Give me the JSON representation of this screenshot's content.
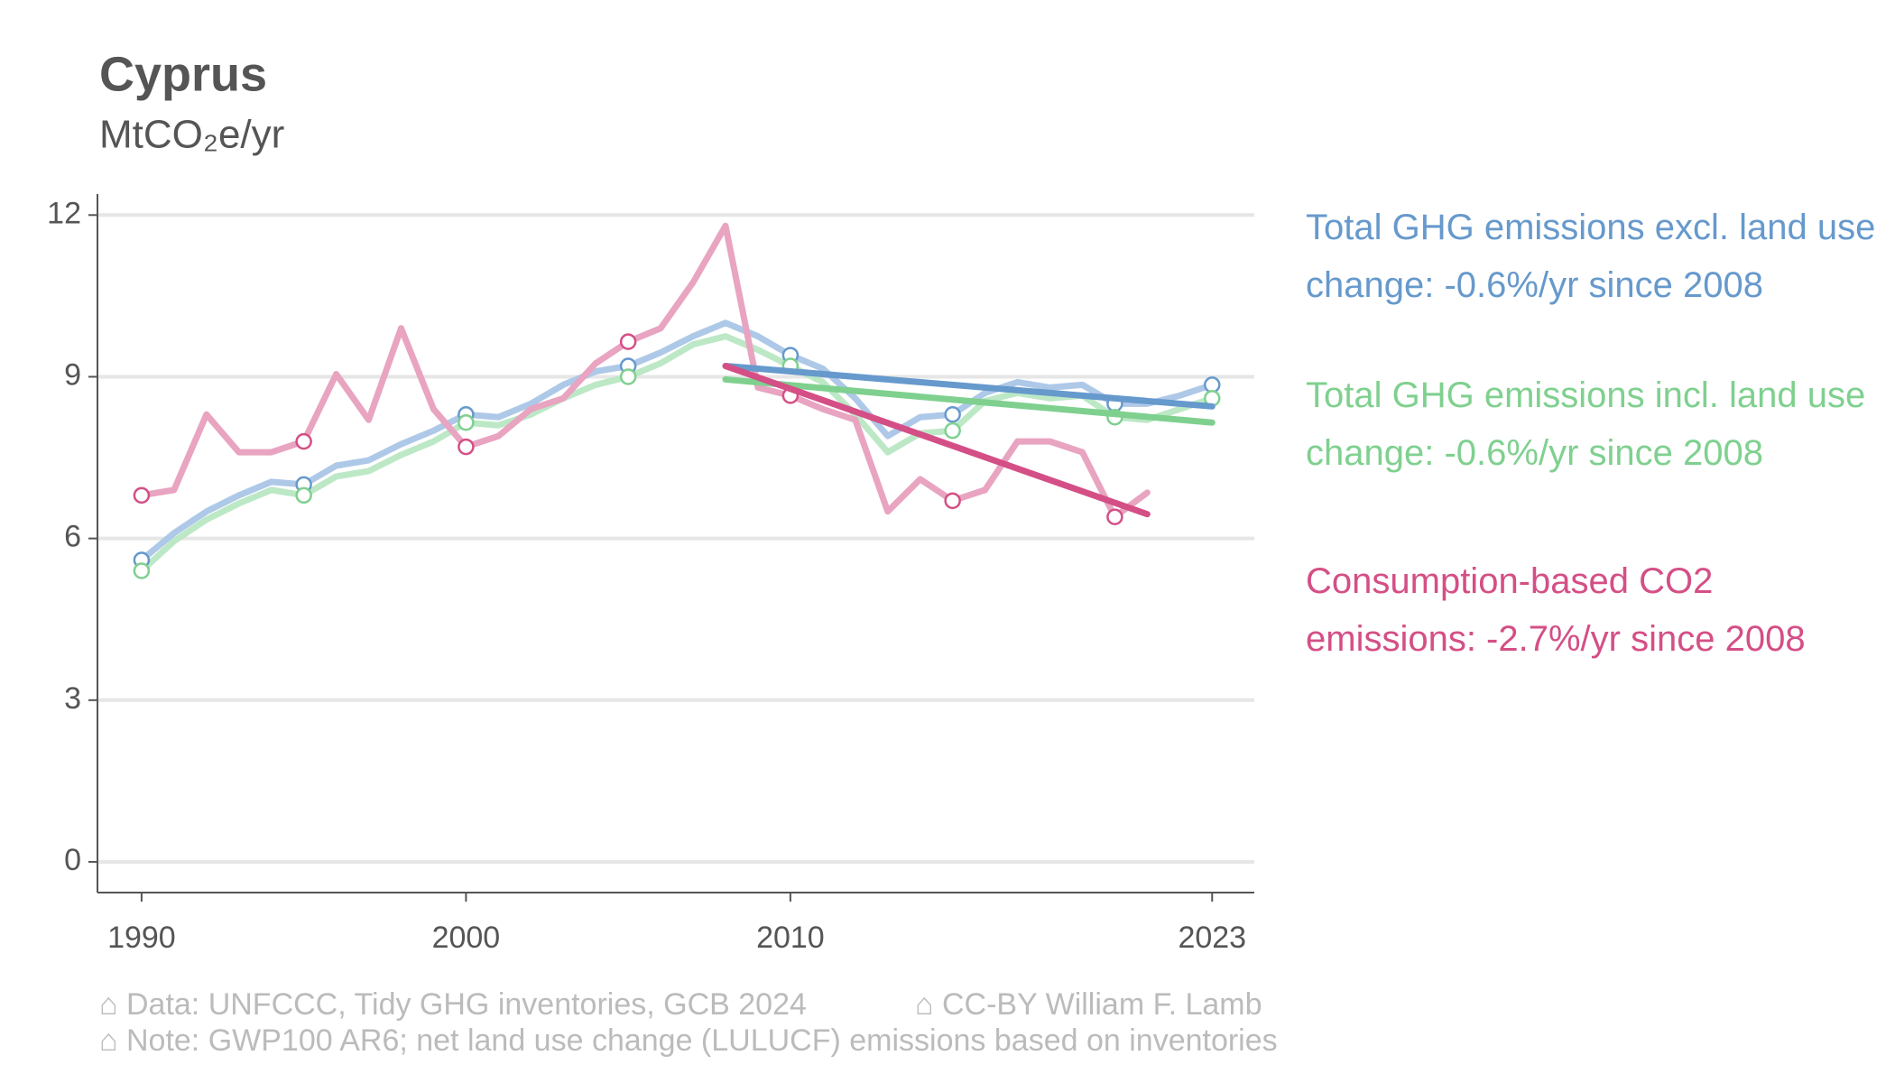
{
  "chart_data": {
    "type": "line",
    "title": "Cyprus",
    "subtitle": "MtCO₂e/yr",
    "xlim": [
      1988.64,
      2024.3
    ],
    "ylim": [
      -0.57,
      12.39
    ],
    "xticks": [
      1990,
      2000,
      2010,
      2023
    ],
    "yticks": [
      0,
      3,
      6,
      9,
      12
    ],
    "grid": true,
    "marker_years": [
      1990,
      1995,
      2000,
      2005,
      2010,
      2015,
      2020,
      2023
    ],
    "series": [
      {
        "name": "Total GHG emissions excl. land use change: -0.6%/yr since 2008",
        "color": "#aec8e8",
        "trend_color": "#6699cc",
        "x": [
          1990,
          1991,
          1992,
          1993,
          1994,
          1995,
          1996,
          1997,
          1998,
          1999,
          2000,
          2001,
          2002,
          2003,
          2004,
          2005,
          2006,
          2007,
          2008,
          2009,
          2010,
          2011,
          2012,
          2013,
          2014,
          2015,
          2016,
          2017,
          2018,
          2019,
          2020,
          2021,
          2022,
          2023
        ],
        "values": [
          5.6,
          6.1,
          6.5,
          6.8,
          7.05,
          7.0,
          7.35,
          7.45,
          7.75,
          8.0,
          8.3,
          8.25,
          8.5,
          8.85,
          9.1,
          9.2,
          9.45,
          9.75,
          10.0,
          9.75,
          9.4,
          9.15,
          8.6,
          7.9,
          8.25,
          8.3,
          8.7,
          8.9,
          8.8,
          8.85,
          8.5,
          8.5,
          8.65,
          8.85
        ],
        "trend": {
          "x": [
            2008,
            2023
          ],
          "values": [
            9.2,
            8.45
          ]
        }
      },
      {
        "name": "Total GHG emissions incl. land use change: -0.6%/yr since 2008",
        "color": "#bce8c6",
        "trend_color": "#7fd08f",
        "x": [
          1990,
          1991,
          1992,
          1993,
          1994,
          1995,
          1996,
          1997,
          1998,
          1999,
          2000,
          2001,
          2002,
          2003,
          2004,
          2005,
          2006,
          2007,
          2008,
          2009,
          2010,
          2011,
          2012,
          2013,
          2014,
          2015,
          2016,
          2017,
          2018,
          2019,
          2020,
          2021,
          2022,
          2023
        ],
        "values": [
          5.4,
          5.95,
          6.35,
          6.65,
          6.9,
          6.8,
          7.15,
          7.25,
          7.55,
          7.8,
          8.15,
          8.1,
          8.3,
          8.6,
          8.85,
          9.0,
          9.25,
          9.6,
          9.75,
          9.5,
          9.2,
          8.9,
          8.3,
          7.6,
          7.95,
          8.0,
          8.55,
          8.7,
          8.6,
          8.65,
          8.25,
          8.2,
          8.4,
          8.6
        ],
        "trend": {
          "x": [
            2008,
            2023
          ],
          "values": [
            8.95,
            8.15
          ]
        }
      },
      {
        "name": "Consumption-based CO2 emissions: -2.7%/yr since 2008",
        "color": "#e8a4c0",
        "trend_color": "#d44f86",
        "x": [
          1990,
          1991,
          1992,
          1993,
          1994,
          1995,
          1996,
          1997,
          1998,
          1999,
          2000,
          2001,
          2002,
          2003,
          2004,
          2005,
          2006,
          2007,
          2008,
          2009,
          2010,
          2011,
          2012,
          2013,
          2014,
          2015,
          2016,
          2017,
          2018,
          2019,
          2020,
          2021
        ],
        "values": [
          6.8,
          6.9,
          8.3,
          7.6,
          7.6,
          7.8,
          9.05,
          8.2,
          9.9,
          8.4,
          7.7,
          7.9,
          8.4,
          8.6,
          9.25,
          9.65,
          9.9,
          10.75,
          11.8,
          8.8,
          8.65,
          8.4,
          8.2,
          6.5,
          7.1,
          6.7,
          6.9,
          7.8,
          7.8,
          7.6,
          6.4,
          6.85
        ],
        "trend": {
          "x": [
            2008,
            2021
          ],
          "values": [
            9.2,
            6.45
          ]
        }
      }
    ],
    "footer": [
      "⌂ Data: UNFCCC, Tidy GHG inventories, GCB 2024",
      "⌂ CC-BY William F. Lamb",
      "⌂ Note: GWP100 AR6; net land use change (LULUCF) emissions based on inventories"
    ]
  }
}
